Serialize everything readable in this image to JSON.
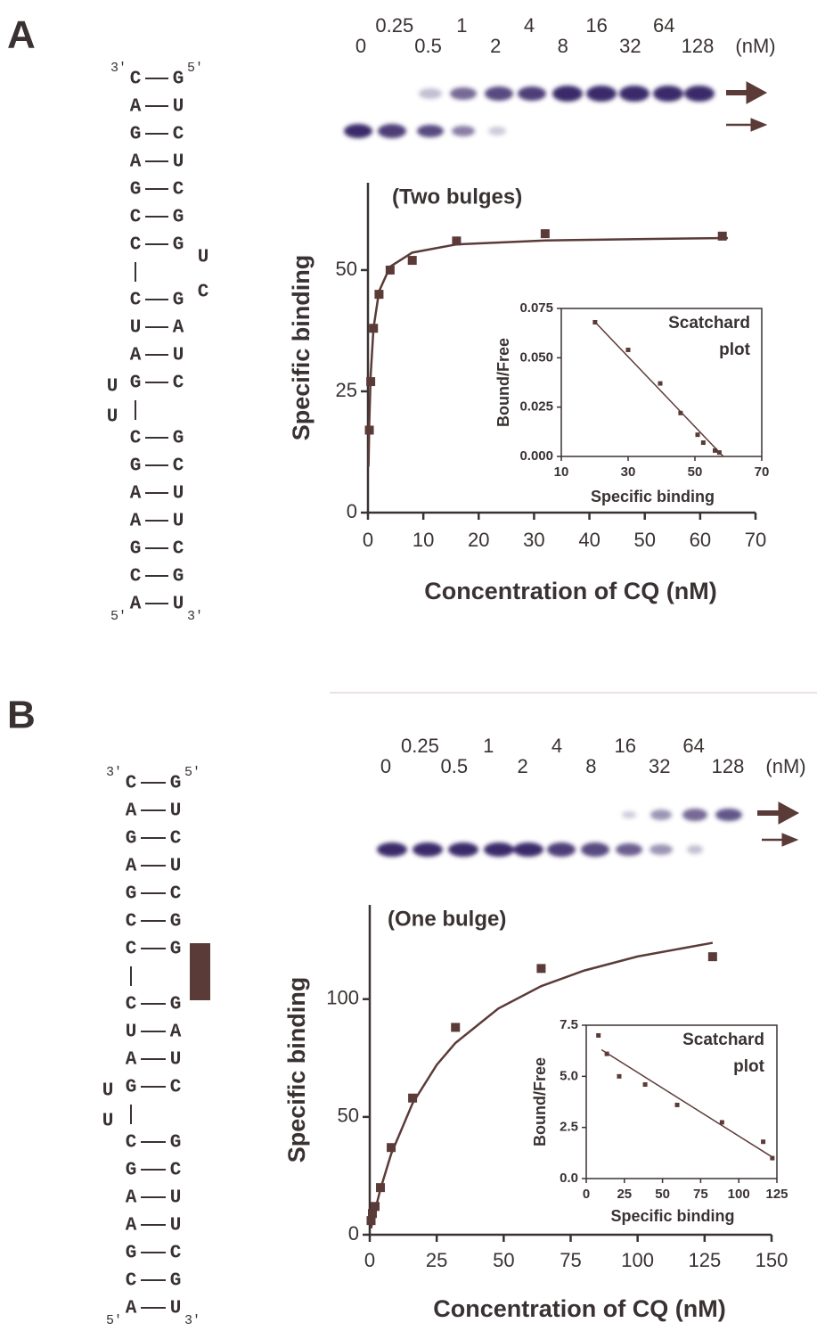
{
  "panels": [
    {
      "label": "A",
      "rna": {
        "rows": [
          [
            "C",
            "G"
          ],
          [
            "A",
            "U"
          ],
          [
            "G",
            "C"
          ],
          [
            "A",
            "U"
          ],
          [
            "G",
            "C"
          ],
          [
            "C",
            "G"
          ],
          [
            "C",
            "G"
          ],
          null,
          [
            "C",
            "G"
          ],
          [
            "U",
            "A"
          ],
          [
            "A",
            "U"
          ],
          [
            "G",
            "C"
          ],
          null,
          [
            "C",
            "G"
          ],
          [
            "G",
            "C"
          ],
          [
            "A",
            "U"
          ],
          [
            "A",
            "U"
          ],
          [
            "G",
            "C"
          ],
          [
            "C",
            "G"
          ],
          [
            "A",
            "U"
          ]
        ],
        "ends": [
          "3'",
          "5'",
          "5'",
          "3'"
        ],
        "loop": [
          "U",
          "U"
        ],
        "bulge": [
          "U",
          "C"
        ]
      },
      "gel": {
        "lanes": [
          0,
          0.25,
          0.5,
          1,
          2,
          4,
          8,
          16,
          32,
          64,
          128
        ],
        "unit": "(nM)"
      }
    },
    {
      "label": "B",
      "rna": {
        "rows": [
          [
            "C",
            "G"
          ],
          [
            "A",
            "U"
          ],
          [
            "G",
            "C"
          ],
          [
            "A",
            "U"
          ],
          [
            "G",
            "C"
          ],
          [
            "C",
            "G"
          ],
          [
            "C",
            "G"
          ],
          null,
          [
            "C",
            "G"
          ],
          [
            "U",
            "A"
          ],
          [
            "A",
            "U"
          ],
          [
            "G",
            "C"
          ],
          null,
          [
            "C",
            "G"
          ],
          [
            "G",
            "C"
          ],
          [
            "A",
            "U"
          ],
          [
            "A",
            "U"
          ],
          [
            "G",
            "C"
          ],
          [
            "C",
            "G"
          ],
          [
            "A",
            "U"
          ]
        ],
        "ends": [
          "3'",
          "5'",
          "5'",
          "3'"
        ],
        "loop": [
          "U",
          "U"
        ]
      },
      "gel": {
        "lanes": [
          0,
          0.25,
          0.5,
          1,
          2,
          4,
          8,
          16,
          32,
          64,
          128
        ],
        "unit": "(nM)"
      }
    }
  ],
  "chart_data": [
    {
      "type": "scatter",
      "title": "(Two bulges)",
      "xlabel": "Concentration of CQ (nM)",
      "ylabel": "Specific binding",
      "xlim": [
        0,
        70
      ],
      "ylim": [
        0,
        68
      ],
      "xticks": [
        0,
        10,
        20,
        30,
        40,
        50,
        60,
        70
      ],
      "yticks": [
        0,
        25,
        50
      ],
      "series": [
        {
          "color": "#5b3b38",
          "x": [
            0.25,
            0.5,
            1,
            2,
            4,
            8,
            16,
            32,
            64
          ],
          "values": [
            17,
            27,
            38,
            45,
            50,
            52,
            56,
            57.5,
            57
          ]
        },
        {
          "type": "line",
          "color": "#5b3b38",
          "x": [
            0.1,
            0.25,
            0.5,
            1,
            2,
            4,
            8,
            16,
            32,
            50,
            65
          ],
          "values": [
            9.5,
            19,
            28.5,
            38,
            45.6,
            50.7,
            53.6,
            55.3,
            56.1,
            56.4,
            56.6
          ]
        }
      ]
    },
    {
      "type": "scatter",
      "title": "Scatchard plot",
      "xlabel": "Specific binding",
      "ylabel": "Bound/Free",
      "xlim": [
        10,
        70
      ],
      "ylim": [
        0,
        0.075
      ],
      "xticks": [
        10,
        30,
        50,
        70
      ],
      "yticks": [
        {
          "value": 0,
          "label": "0.000"
        },
        {
          "value": 0.025,
          "label": "0.025"
        },
        {
          "value": 0.05,
          "label": "0.050"
        },
        {
          "value": 0.075,
          "label": "0.075"
        }
      ],
      "series": [
        {
          "color": "#5b3b38",
          "x": [
            20.1,
            30,
            39.6,
            45.7,
            50.8,
            52.5,
            56,
            57.3
          ],
          "values": [
            0.068,
            0.054,
            0.037,
            0.022,
            0.011,
            0.007,
            0.003,
            0.002
          ]
        },
        {
          "type": "line",
          "color": "#5b3b38",
          "x": [
            19.6,
            58.5
          ],
          "values": [
            0.069,
            0
          ]
        }
      ]
    },
    {
      "type": "scatter",
      "title": "(One bulge)",
      "xlabel": "Concentration of CQ (nM)",
      "ylabel": "Specific binding",
      "xlim": [
        0,
        150
      ],
      "ylim": [
        0,
        140
      ],
      "xticks": [
        0,
        25,
        50,
        75,
        100,
        125,
        150
      ],
      "yticks": [
        0,
        50,
        100
      ],
      "series": [
        {
          "color": "#5b3b38",
          "x": [
            0.5,
            1,
            2,
            4,
            8,
            16,
            32,
            64,
            128
          ],
          "values": [
            6,
            9,
            12,
            20,
            37,
            58,
            88,
            113,
            118
          ]
        },
        {
          "type": "line",
          "color": "#5b3b38",
          "x": [
            0.5,
            1,
            2,
            4,
            8,
            16,
            25,
            32,
            48,
            64,
            80,
            100,
            128
          ],
          "values": [
            2.7,
            5.4,
            10.3,
            19.4,
            34.3,
            55.8,
            72.1,
            81.4,
            96,
            105.5,
            112.1,
            118.1,
            123.9
          ]
        }
      ]
    },
    {
      "type": "scatter",
      "title": "Scatchard plot",
      "xlabel": "Specific binding",
      "ylabel": "Bound/Free",
      "xlim": [
        0,
        125
      ],
      "ylim": [
        0,
        7.5
      ],
      "xticks": [
        0,
        25,
        50,
        75,
        100,
        125
      ],
      "yticks": [
        {
          "value": 0,
          "label": "0.0"
        },
        2.5,
        {
          "value": 5,
          "label": "5.0"
        },
        7.5
      ],
      "series": [
        {
          "color": "#5b3b38",
          "x": [
            8,
            13.5,
            21.6,
            38.6,
            59.6,
            89,
            116,
            122
          ],
          "values": [
            7.0,
            6.1,
            5.0,
            4.6,
            3.6,
            2.75,
            1.8,
            1.0
          ]
        },
        {
          "type": "line",
          "color": "#5b3b38",
          "x": [
            10,
            123
          ],
          "values": [
            6.3,
            1.0
          ]
        }
      ]
    }
  ]
}
